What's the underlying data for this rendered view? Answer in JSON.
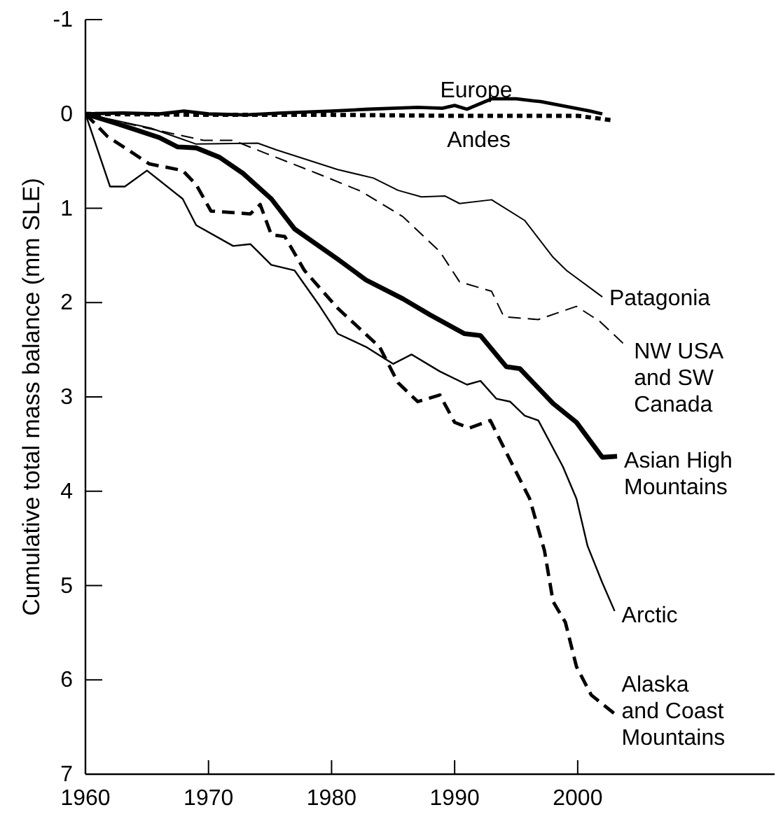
{
  "chart_data": {
    "type": "line",
    "ylabel": "Cumulative total mass balance (mm SLE)",
    "xlim": [
      1960,
      2016
    ],
    "xticks": [
      1960,
      1970,
      1980,
      1990,
      2000
    ],
    "ylim": [
      7,
      -1
    ],
    "yticks": [
      -1,
      0,
      1,
      2,
      3,
      4,
      5,
      6,
      7
    ],
    "series": [
      {
        "name": "Europe",
        "color": "#000000",
        "line_style": "solid",
        "x": [
          1960,
          1963,
          1966,
          1968,
          1970,
          1973,
          1976,
          1980,
          1983,
          1985,
          1987,
          1989,
          1990,
          1991,
          1993,
          1995,
          1997,
          1999,
          2001,
          2002
        ],
        "values": [
          0,
          -0.01,
          0,
          -0.03,
          0,
          0.01,
          -0.01,
          -0.03,
          -0.05,
          -0.06,
          -0.07,
          -0.06,
          -0.09,
          -0.05,
          -0.16,
          -0.16,
          -0.13,
          -0.08,
          -0.03,
          0
        ]
      },
      {
        "name": "Andes",
        "color": "#000000",
        "line_style": "dotted",
        "x": [
          1960,
          1970,
          1980,
          1990,
          2000,
          2003
        ],
        "values": [
          0,
          0.01,
          0.01,
          0.02,
          0.02,
          0.07
        ]
      },
      {
        "name": "Patagonia",
        "color": "#000000",
        "line_style": "solid",
        "x": [
          1960,
          1965.3,
          1969,
          1974,
          1975.5,
          1980.5,
          1983.4,
          1985.4,
          1987.3,
          1989.2,
          1990.4,
          1993,
          1995.7,
          1998,
          1999.1,
          2002
        ],
        "values": [
          0,
          0.15,
          0.32,
          0.31,
          0.38,
          0.59,
          0.68,
          0.81,
          0.88,
          0.87,
          0.95,
          0.91,
          1.13,
          1.52,
          1.66,
          1.94
        ]
      },
      {
        "name": "NW USA and SW Canada",
        "color": "#000000",
        "line_style": "dashed",
        "x": [
          1960,
          1965,
          1969.6,
          1972,
          1974.7,
          1979,
          1982.4,
          1985.8,
          1988.8,
          1990.4,
          1993,
          1994,
          1996.8,
          1999.9,
          2001.8,
          2004
        ],
        "values": [
          0,
          0.15,
          0.28,
          0.28,
          0.42,
          0.64,
          0.82,
          1.09,
          1.46,
          1.78,
          1.88,
          2.15,
          2.18,
          2.04,
          2.2,
          2.47
        ]
      },
      {
        "name": "Asian High Mountains",
        "color": "#000000",
        "line_style": "solid",
        "x": [
          1960,
          1962.5,
          1966,
          1967.5,
          1969,
          1970.9,
          1972.8,
          1975.1,
          1977,
          1980.5,
          1982.8,
          1985.8,
          1988,
          1990.8,
          1992.1,
          1994.2,
          1995.3,
          1998,
          1999.9,
          2002,
          2003.2
        ],
        "values": [
          0,
          0.1,
          0.25,
          0.35,
          0.36,
          0.46,
          0.63,
          0.9,
          1.22,
          1.54,
          1.76,
          1.96,
          2.13,
          2.33,
          2.35,
          2.68,
          2.7,
          3.07,
          3.27,
          3.64,
          3.63
        ]
      },
      {
        "name": "Arctic",
        "color": "#000000",
        "line_style": "solid",
        "x": [
          1960,
          1962,
          1963.2,
          1965,
          1967.9,
          1969,
          1972,
          1973.4,
          1975.1,
          1977,
          1979,
          1980.5,
          1982.8,
          1985,
          1986.5,
          1988.8,
          1991,
          1992.1,
          1993.4,
          1994.5,
          1995.7,
          1996.8,
          1998.8,
          1999.9,
          2000.8,
          2002,
          2003
        ],
        "values": [
          0,
          0.77,
          0.77,
          0.6,
          0.9,
          1.18,
          1.4,
          1.38,
          1.6,
          1.66,
          2.03,
          2.33,
          2.47,
          2.65,
          2.55,
          2.73,
          2.87,
          2.83,
          3.02,
          3.05,
          3.2,
          3.25,
          3.74,
          4.08,
          4.58,
          4.97,
          5.27
        ]
      },
      {
        "name": "Alaska and Coast Mountains",
        "color": "#000000",
        "line_style": "dashed",
        "x": [
          1960,
          1961.8,
          1965.2,
          1967.9,
          1969,
          1970.2,
          1973.4,
          1974.2,
          1975.1,
          1976.2,
          1977.8,
          1980.5,
          1983.9,
          1985.4,
          1987,
          1988.8,
          1990,
          1991.2,
          1992.9,
          1994.2,
          1996.1,
          1997.3,
          1998,
          1999,
          1999.9,
          2001.1,
          2003
        ],
        "values": [
          0,
          0.24,
          0.53,
          0.6,
          0.75,
          1.03,
          1.06,
          0.96,
          1.28,
          1.3,
          1.66,
          2.06,
          2.47,
          2.85,
          3.05,
          2.98,
          3.27,
          3.33,
          3.25,
          3.59,
          4.08,
          4.63,
          5.17,
          5.39,
          5.86,
          6.16,
          6.36
        ]
      }
    ]
  }
}
